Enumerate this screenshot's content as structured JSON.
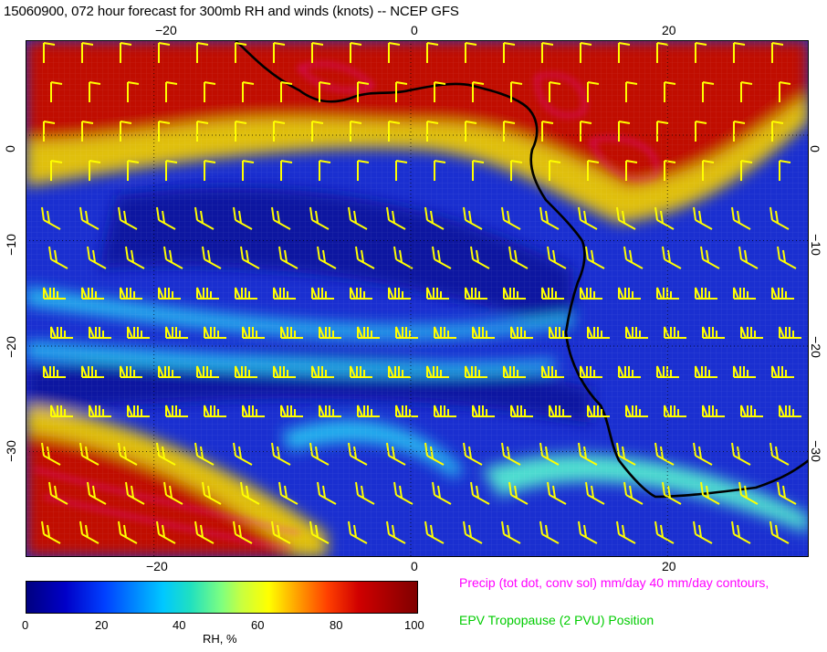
{
  "title": "15060900, 072 hour forecast for 300mb RH and winds (knots) -- NCEP GFS",
  "map": {
    "lon_ticks": [
      -20,
      0,
      20
    ],
    "lat_ticks": [
      0,
      -10,
      -20,
      -30
    ],
    "lon_labels": [
      "−20",
      "0",
      "20"
    ],
    "lat_labels_left": [
      "0",
      "−10",
      "−20",
      "−30"
    ],
    "lat_labels_right": [
      "0",
      "−10",
      "−20",
      "−30"
    ],
    "lon_range": [
      -30,
      31
    ],
    "lat_range": [
      -40,
      9
    ],
    "colors": {
      "ocean": "#1a2fd0",
      "dry_band": "#0a14a0",
      "jet_band": "#28b8f0",
      "moist": "#c01000",
      "coast": "#000000",
      "barbs": "#ffff00",
      "precip": "#ff00ff"
    }
  },
  "colorbar": {
    "tick_labels": [
      "0",
      "20",
      "40",
      "60",
      "80",
      "100"
    ],
    "label": "RH, %"
  },
  "legend": {
    "precip": "Precip (tot dot, conv sol) mm/day 40 mm/day contours,",
    "epv": "EPV Tropopause (2 PVU) Position"
  }
}
